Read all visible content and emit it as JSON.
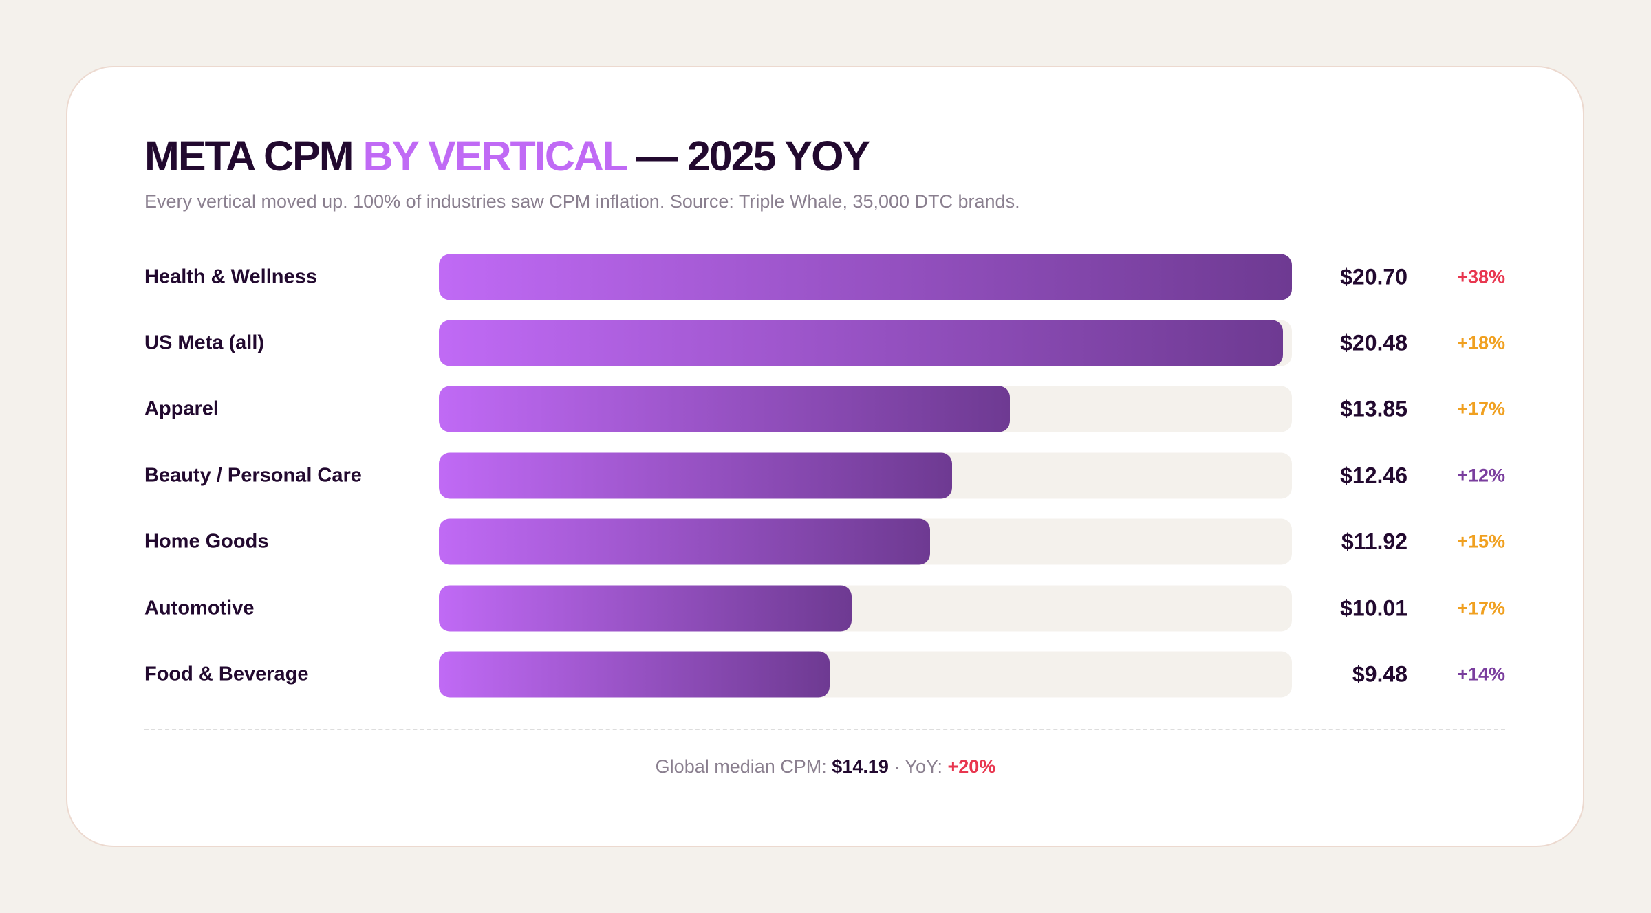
{
  "chart_data": {
    "type": "bar",
    "title": {
      "part1": "META CPM",
      "part2": "BY VERTICAL",
      "part3": "— 2025 YOY"
    },
    "subtitle": "Every vertical moved up. 100% of industries saw CPM inflation. Source: Triple Whale, 35,000 DTC brands.",
    "categories": [
      "Health & Wellness",
      "US Meta (all)",
      "Apparel",
      "Beauty / Personal Care",
      "Home Goods",
      "Automotive",
      "Food & Beverage"
    ],
    "values": [
      20.7,
      20.48,
      13.85,
      12.46,
      11.92,
      10.01,
      9.48
    ],
    "value_labels": [
      "$20.70",
      "$20.48",
      "$13.85",
      "$12.46",
      "$11.92",
      "$10.01",
      "$9.48"
    ],
    "changes": [
      38,
      18,
      17,
      12,
      15,
      17,
      14
    ],
    "change_labels": [
      "+38%",
      "+18%",
      "+17%",
      "+12%",
      "+15%",
      "+17%",
      "+14%"
    ],
    "change_colors": [
      "#e8364f",
      "#f0a020",
      "#f0a020",
      "#7a3e9e",
      "#f0a020",
      "#f0a020",
      "#7a3e9e"
    ],
    "footer": {
      "label": "Global median CPM:",
      "median": "$14.19",
      "separator": "·",
      "yoy_label": "YoY:",
      "yoy": "+20%"
    }
  }
}
